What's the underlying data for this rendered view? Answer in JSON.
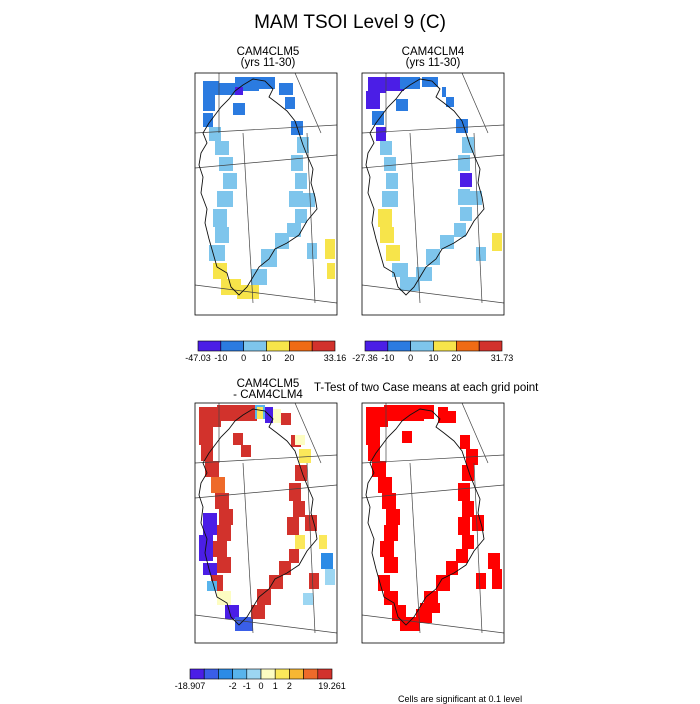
{
  "page": {
    "title": "MAM TSOI Level 9 (C)"
  },
  "chart_data": [
    {
      "type": "heatmap",
      "id": "p1",
      "title_lines": [
        "CAM4CLM5",
        "(yrs 11-30)"
      ],
      "colorbar": {
        "colors": [
          "#4b1ee6",
          "#2b7be0",
          "#7ec5ec",
          "#f7e44a",
          "#f06b14",
          "#d2322c"
        ],
        "labels": [
          "-47.03",
          "-10",
          "0",
          "10",
          "20",
          "33.16"
        ]
      },
      "cell_classes": [
        "west-dark",
        "west-mid",
        "interior-light",
        "south-yellow",
        "east-mid",
        "east-light"
      ]
    },
    {
      "type": "heatmap",
      "id": "p2",
      "title_lines": [
        "CAM4CLM4",
        "(yrs 11-30)"
      ],
      "colorbar": {
        "colors": [
          "#4b1ee6",
          "#2b7be0",
          "#7ec5ec",
          "#f7e44a",
          "#f06b14",
          "#d2322c"
        ],
        "labels": [
          "-27.36",
          "-10",
          "0",
          "10",
          "20",
          "31.73"
        ]
      },
      "cell_classes": [
        "west-dark",
        "west-mid",
        "interior-light",
        "south-yellow",
        "east-mid",
        "east-light"
      ]
    },
    {
      "type": "heatmap",
      "id": "p3",
      "title_lines": [
        "CAM4CLM5",
        "- CAM4CLM4"
      ],
      "colorbar": {
        "colors": [
          "#4b1ee6",
          "#3a5ee8",
          "#2b8be6",
          "#58b4ec",
          "#9cd6f2",
          "#fdfdc2",
          "#fbe85a",
          "#f7b733",
          "#ee6a2a",
          "#d2322c"
        ],
        "labels": [
          "-18.907",
          "-2",
          "-1",
          "0",
          "1",
          "2",
          "19.261"
        ]
      }
    },
    {
      "type": "heatmap",
      "id": "p4",
      "title": "T-Test of two Case means at each grid point",
      "note": "Cells are significant at 0.1 level"
    }
  ]
}
